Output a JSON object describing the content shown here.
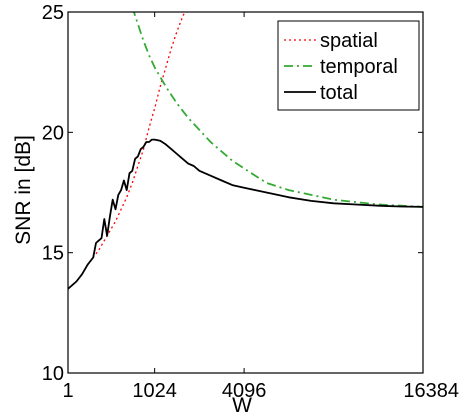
{
  "chart_data": {
    "type": "line",
    "xlabel": "W",
    "ylabel": "SNR in [dB]",
    "xlim": [
      1,
      16384
    ],
    "ylim": [
      10,
      25
    ],
    "x_ticks": [
      1,
      1024,
      4096,
      16384
    ],
    "x_tick_labels": [
      "1",
      "1024",
      "4096",
      "16384"
    ],
    "y_ticks": [
      10,
      15,
      20,
      25
    ],
    "y_tick_labels": [
      "10",
      "15",
      "20",
      "25"
    ],
    "x_scale": "sqrt",
    "grid": false,
    "legend_position": "top-right",
    "series": [
      {
        "name": "spatial",
        "color": "#ff0000",
        "style": "dotted",
        "x": [
          1,
          16,
          36,
          64,
          100,
          144,
          196,
          256,
          324,
          400,
          484,
          576,
          676,
          784,
          900,
          1024,
          1156,
          1296,
          1444,
          1600,
          1764,
          1936
        ],
        "y": [
          13.5,
          13.8,
          14.1,
          14.5,
          14.8,
          15.1,
          15.5,
          15.9,
          16.3,
          16.8,
          17.3,
          17.9,
          18.6,
          19.3,
          20.2,
          21.0,
          21.9,
          22.7,
          23.5,
          24.2,
          24.8,
          25.3
        ]
      },
      {
        "name": "temporal",
        "color": "#33aa33",
        "style": "dashdot",
        "x": [
          576,
          676,
          784,
          900,
          1024,
          1296,
          1600,
          1936,
          2304,
          2704,
          3136,
          3600,
          4096,
          4624,
          5184,
          6400,
          7744,
          9216,
          10816,
          12544,
          14400,
          16384
        ],
        "y": [
          25.2,
          24.5,
          23.8,
          23.2,
          22.7,
          21.9,
          21.2,
          20.6,
          20.1,
          19.6,
          19.2,
          18.8,
          18.5,
          18.2,
          17.9,
          17.6,
          17.4,
          17.2,
          17.1,
          17.0,
          16.95,
          16.9
        ]
      },
      {
        "name": "total",
        "color": "#000000",
        "style": "solid",
        "x": [
          1,
          16,
          36,
          64,
          100,
          121,
          144,
          169,
          196,
          225,
          256,
          289,
          324,
          361,
          400,
          441,
          484,
          529,
          576,
          625,
          676,
          729,
          784,
          841,
          900,
          961,
          1024,
          1156,
          1296,
          1444,
          1600,
          1764,
          1936,
          2116,
          2304,
          2704,
          3136,
          3600,
          4096,
          4624,
          5184,
          6400,
          7744,
          9216,
          10816,
          12544,
          14400,
          16384
        ],
        "y": [
          13.5,
          13.8,
          14.1,
          14.5,
          14.8,
          15.4,
          15.5,
          15.6,
          16.4,
          15.7,
          16.5,
          17.2,
          16.8,
          17.4,
          17.6,
          18.0,
          17.6,
          18.3,
          18.4,
          18.9,
          19.0,
          19.3,
          19.4,
          19.6,
          19.6,
          19.7,
          19.7,
          19.65,
          19.5,
          19.3,
          19.1,
          18.9,
          18.7,
          18.6,
          18.4,
          18.2,
          18.0,
          17.8,
          17.7,
          17.6,
          17.5,
          17.3,
          17.15,
          17.05,
          17.0,
          16.95,
          16.92,
          16.9
        ]
      }
    ]
  }
}
